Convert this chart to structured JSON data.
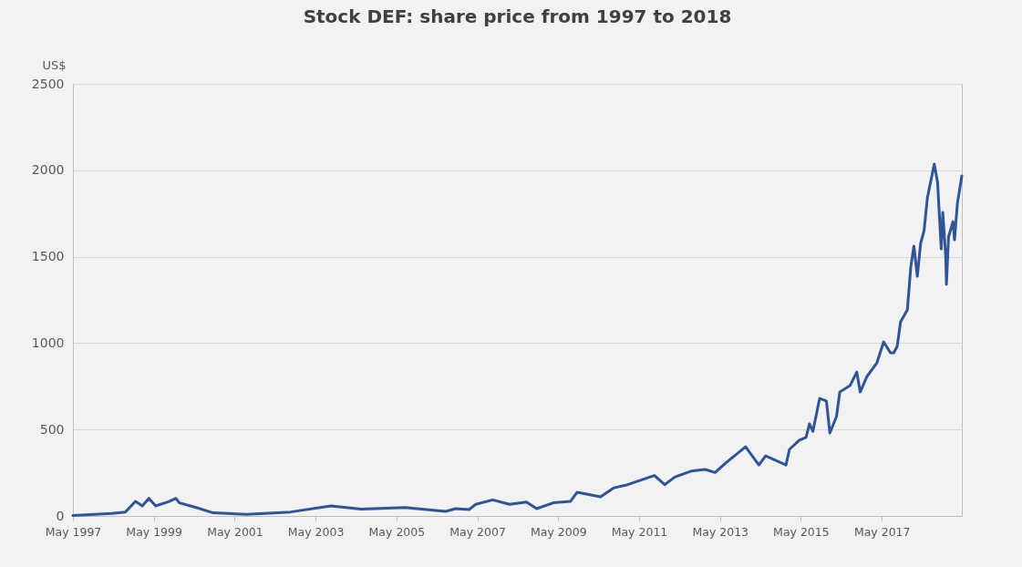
{
  "chart_data": {
    "type": "line",
    "title": "Stock DEF: share price from 1997 to 2018",
    "ylabel": "US$",
    "x": [
      "1997-05-15",
      "1998-05",
      "1998-09",
      "1998-12",
      "1999-02",
      "1999-04",
      "1999-06",
      "1999-10",
      "1999-12",
      "2000-01",
      "2000-06",
      "2000-11",
      "2001-09",
      "2002-10",
      "2003-10",
      "2004-07",
      "2005-08",
      "2006-08",
      "2006-11",
      "2007-03",
      "2007-05",
      "2007-10",
      "2008-03",
      "2008-08",
      "2008-11",
      "2009-04",
      "2009-09",
      "2009-11",
      "2010-06",
      "2010-10",
      "2011-02",
      "2011-10",
      "2012-01",
      "2012-04",
      "2012-09",
      "2013-01",
      "2013-04",
      "2013-07",
      "2014-01",
      "2014-05",
      "2014-07",
      "2015-01",
      "2015-02",
      "2015-05",
      "2015-07",
      "2015-08",
      "2015-09",
      "2015-11",
      "2016-01",
      "2016-02",
      "2016-04",
      "2016-05",
      "2016-08",
      "2016-10",
      "2016-11",
      "2017-01",
      "2017-04",
      "2017-06",
      "2017-08",
      "2017-09",
      "2017-10",
      "2017-11",
      "2018-01",
      "2018-02",
      "2018-03",
      "2018-04",
      "2018-05",
      "2018-06",
      "2018-07",
      "2018-09",
      "2018-10",
      "2018-11-03",
      "2018-11-17",
      "2018-12-13",
      "2018-12-20",
      "2019-01-08",
      "2019-02-17",
      "2019-03-03",
      "2019-03-29",
      "2019-05-08"
    ],
    "series": [
      {
        "color": "#2f5597",
        "values": [
          2,
          14,
          23,
          84,
          58,
          102,
          58,
          84,
          102,
          76,
          49,
          18,
          9,
          23,
          58,
          40,
          49,
          26,
          42,
          37,
          67,
          93,
          67,
          81,
          42,
          76,
          84,
          137,
          111,
          163,
          181,
          234,
          181,
          225,
          260,
          269,
          251,
          304,
          400,
          295,
          348,
          295,
          385,
          438,
          454,
          533,
          490,
          680,
          665,
          480,
          575,
          717,
          754,
          833,
          717,
          807,
          886,
          1007,
          944,
          944,
          981,
          1123,
          1192,
          1440,
          1561,
          1387,
          1577,
          1651,
          1841,
          2036,
          1930,
          1545,
          1756,
          1508,
          1340,
          1614,
          1703,
          1598,
          1809,
          1967
        ]
      }
    ],
    "xlim": [
      "1997-05-15",
      "2019-05-08"
    ],
    "xticks": [
      {
        "value": "1997-05-15",
        "label": "May 1997"
      },
      {
        "value": "1999-05-15",
        "label": "May 1999"
      },
      {
        "value": "2001-05-15",
        "label": "May 2001"
      },
      {
        "value": "2003-05-15",
        "label": "May 2003"
      },
      {
        "value": "2005-05-15",
        "label": "May 2005"
      },
      {
        "value": "2007-05-15",
        "label": "May 2007"
      },
      {
        "value": "2009-05-15",
        "label": "May 2009"
      },
      {
        "value": "2011-05-15",
        "label": "May 2011"
      },
      {
        "value": "2013-05-15",
        "label": "May 2013"
      },
      {
        "value": "2015-05-15",
        "label": "May 2015"
      },
      {
        "value": "2017-05-15",
        "label": "May 2017"
      }
    ],
    "ylim": [
      0,
      2500
    ],
    "yticks": [
      0,
      500,
      1000,
      1500,
      2000,
      2500
    ],
    "grid": "y",
    "marker": "none",
    "line_style": "solid"
  }
}
